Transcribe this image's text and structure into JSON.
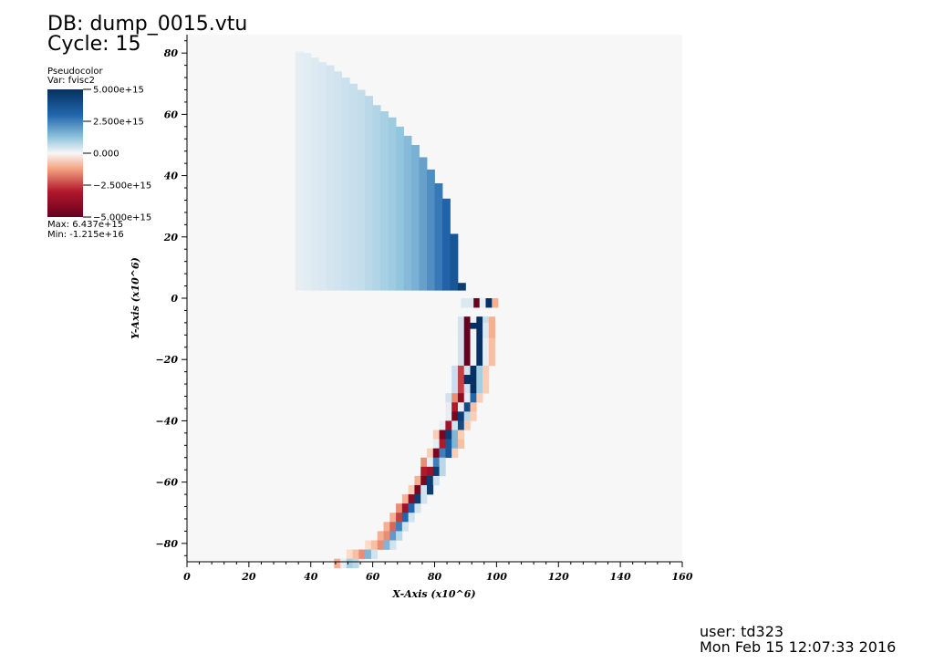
{
  "header": {
    "db_line": "DB: dump_0015.vtu",
    "cycle_line": "Cycle: 15"
  },
  "legend": {
    "plot_type": "Pseudocolor",
    "var_line": "Var: fvisc2",
    "max_line": "Max:  6.437e+15",
    "min_line": "Min: -1.215e+16",
    "colors": {
      "high": "#053061",
      "mid_high": "#2166ac",
      "light_blue": "#d1e5f0",
      "mid": "#f7f7f7",
      "light_red": "#fddbc7",
      "mid_low": "#d6604d",
      "low": "#67001f"
    }
  },
  "footer": {
    "user_line": "user: td323",
    "date_line": "Mon Feb 15 12:07:33 2016"
  },
  "chart_data": {
    "type": "heatmap",
    "title": "",
    "xlabel": "X-Axis (x10^6)",
    "ylabel": "Y-Axis (x10^6)",
    "xlim": [
      0,
      160
    ],
    "ylim": [
      -86,
      86
    ],
    "x_ticks": [
      0,
      20,
      40,
      60,
      80,
      100,
      120,
      140,
      160
    ],
    "x_tick_labels": [
      "0",
      "20",
      "40",
      "60",
      "80",
      "100",
      "120",
      "140",
      "160"
    ],
    "y_ticks": [
      80,
      60,
      40,
      20,
      0,
      -20,
      -40,
      -60,
      -80
    ],
    "y_tick_labels": [
      "80",
      "60",
      "40",
      "20",
      "0",
      "−20",
      "−40",
      "−60",
      "−80"
    ],
    "colorbar": {
      "ticks": [
        5000000000000000.0,
        2500000000000000.0,
        0,
        -2500000000000000.0,
        -5000000000000000.0
      ],
      "tick_labels": [
        "5.000e+15",
        "2.500e+15",
        "0.000",
        "−2.500e+15",
        "−5.000e+15"
      ],
      "range": [
        -5000000000000000.0,
        5000000000000000.0
      ]
    },
    "background_value": 0,
    "upper_region": {
      "cell_width": 2.5,
      "y_bottom": 2.5,
      "columns": [
        {
          "x": 35.0,
          "top": 80.5,
          "v": 0.05
        },
        {
          "x": 37.5,
          "top": 80.0,
          "v": 0.06
        },
        {
          "x": 40.0,
          "top": 78.5,
          "v": 0.07
        },
        {
          "x": 42.5,
          "top": 77.0,
          "v": 0.08
        },
        {
          "x": 45.0,
          "top": 76.0,
          "v": 0.09
        },
        {
          "x": 47.5,
          "top": 74.0,
          "v": 0.1
        },
        {
          "x": 50.0,
          "top": 72.0,
          "v": 0.11
        },
        {
          "x": 52.5,
          "top": 70.0,
          "v": 0.12
        },
        {
          "x": 55.0,
          "top": 68.0,
          "v": 0.13
        },
        {
          "x": 57.5,
          "top": 66.0,
          "v": 0.15
        },
        {
          "x": 60.0,
          "top": 63.0,
          "v": 0.17
        },
        {
          "x": 62.5,
          "top": 61.0,
          "v": 0.19
        },
        {
          "x": 65.0,
          "top": 59.0,
          "v": 0.21
        },
        {
          "x": 67.5,
          "top": 56.0,
          "v": 0.24
        },
        {
          "x": 70.0,
          "top": 53.0,
          "v": 0.28
        },
        {
          "x": 72.5,
          "top": 50.0,
          "v": 0.32
        },
        {
          "x": 75.0,
          "top": 46.0,
          "v": 0.38
        },
        {
          "x": 77.5,
          "top": 42.0,
          "v": 0.45
        },
        {
          "x": 80.0,
          "top": 37.5,
          "v": 0.53
        },
        {
          "x": 82.5,
          "top": 32.5,
          "v": 0.62
        },
        {
          "x": 85.0,
          "top": 21.0,
          "v": 0.72
        },
        {
          "x": 87.5,
          "top": 5.0,
          "v": 0.9
        }
      ]
    },
    "lower_cells": [
      [
        90.5,
        0,
        1,
        0.1
      ],
      [
        92.5,
        0,
        1,
        -1
      ],
      [
        94.5,
        0,
        1,
        0.05
      ],
      [
        96.5,
        0,
        1,
        1
      ],
      [
        98.5,
        0,
        1,
        -0.2
      ],
      [
        88.5,
        0,
        2,
        0.08
      ],
      [
        87.5,
        -6,
        1,
        0.1
      ],
      [
        89.5,
        -6,
        1,
        -1
      ],
      [
        91.5,
        -6,
        1,
        0.02
      ],
      [
        93.5,
        -6,
        1,
        1
      ],
      [
        95.5,
        -6,
        1,
        0.12
      ],
      [
        97.5,
        -6,
        1,
        -0.2
      ],
      [
        87.5,
        -8,
        1,
        0.1
      ],
      [
        89.5,
        -8,
        1,
        -1
      ],
      [
        91.5,
        -8,
        1,
        1
      ],
      [
        93.5,
        -8,
        1,
        1
      ],
      [
        95.5,
        -8,
        1,
        0.08
      ],
      [
        97.5,
        -8,
        1,
        -0.2
      ],
      [
        87.5,
        -10,
        1,
        0.1
      ],
      [
        89.5,
        -10,
        1,
        -1
      ],
      [
        91.5,
        -10,
        1,
        0.02
      ],
      [
        93.5,
        -10,
        1,
        1
      ],
      [
        95.5,
        -10,
        1,
        0.08
      ],
      [
        97.5,
        -10,
        1,
        -0.2
      ],
      [
        87.5,
        -13,
        1,
        0.1
      ],
      [
        89.5,
        -13,
        1,
        -1
      ],
      [
        91.5,
        -13,
        1,
        0.02
      ],
      [
        93.5,
        -13,
        1,
        1
      ],
      [
        95.5,
        -13,
        1,
        0.05
      ],
      [
        97.5,
        -13,
        1,
        -0.15
      ],
      [
        87.5,
        -16,
        1,
        0.1
      ],
      [
        89.5,
        -16,
        1,
        -1
      ],
      [
        91.5,
        -16,
        1,
        0.02
      ],
      [
        93.5,
        -16,
        1,
        1
      ],
      [
        95.5,
        -16,
        1,
        0.05
      ],
      [
        97.5,
        -16,
        1,
        -0.15
      ],
      [
        87.5,
        -19,
        1,
        0.1
      ],
      [
        89.5,
        -19,
        1,
        -1
      ],
      [
        91.5,
        -19,
        1,
        0.02
      ],
      [
        93.5,
        -19,
        1,
        1
      ],
      [
        95.5,
        -19,
        1,
        0.05
      ],
      [
        97.5,
        -19,
        1,
        -0.15
      ],
      [
        85.5,
        -22,
        1,
        0.12
      ],
      [
        87.5,
        -22,
        1,
        -0.5
      ],
      [
        89.5,
        -22,
        1,
        0.1
      ],
      [
        91.5,
        -22,
        1,
        1
      ],
      [
        93.5,
        -22,
        1,
        0.2
      ],
      [
        95.5,
        -22,
        1,
        -0.1
      ],
      [
        85.5,
        -25,
        1,
        0.12
      ],
      [
        87.5,
        -25,
        1,
        -0.5
      ],
      [
        89.5,
        -25,
        1,
        1
      ],
      [
        91.5,
        -25,
        1,
        1
      ],
      [
        93.5,
        -25,
        1,
        0.2
      ],
      [
        95.5,
        -25,
        1,
        -0.1
      ],
      [
        85.5,
        -28,
        1,
        0.12
      ],
      [
        87.5,
        -28,
        1,
        -0.5
      ],
      [
        89.5,
        -28,
        1,
        0.1
      ],
      [
        91.5,
        -28,
        1,
        1
      ],
      [
        93.5,
        -28,
        1,
        0.2
      ],
      [
        95.5,
        -28,
        1,
        -0.1
      ],
      [
        83.5,
        -31,
        1,
        0.1
      ],
      [
        85.5,
        -31,
        1,
        -0.3
      ],
      [
        87.5,
        -31,
        1,
        -0.8
      ],
      [
        89.5,
        -31,
        1,
        0.05
      ],
      [
        91.5,
        -31,
        1,
        0.6
      ],
      [
        93.5,
        -31,
        1,
        -0.1
      ],
      [
        83.5,
        -34,
        1,
        0.05
      ],
      [
        85.5,
        -34,
        1,
        -0.6
      ],
      [
        87.5,
        -34,
        1,
        0.05
      ],
      [
        89.5,
        -34,
        1,
        0.8
      ],
      [
        91.5,
        -34,
        1,
        -0.15
      ],
      [
        83.5,
        -37,
        1,
        0.05
      ],
      [
        85.5,
        -37,
        1,
        -0.9
      ],
      [
        87.5,
        -37,
        1,
        0.9
      ],
      [
        89.5,
        -37,
        1,
        0.15
      ],
      [
        91.5,
        -37,
        1,
        -0.1
      ],
      [
        81.5,
        -40,
        1,
        0.05
      ],
      [
        83.5,
        -40,
        1,
        -0.7
      ],
      [
        85.5,
        -40,
        1,
        0.1
      ],
      [
        87.5,
        -40,
        1,
        0.8
      ],
      [
        89.5,
        -40,
        1,
        -0.1
      ],
      [
        79.5,
        -43,
        1,
        -0.1
      ],
      [
        81.5,
        -43,
        1,
        -0.9
      ],
      [
        83.5,
        -43,
        1,
        0.9
      ],
      [
        85.5,
        -43,
        1,
        0.3
      ],
      [
        87.5,
        -43,
        1,
        -0.1
      ],
      [
        79.5,
        -46,
        1,
        0.05
      ],
      [
        81.5,
        -46,
        1,
        -0.6
      ],
      [
        83.5,
        -46,
        1,
        0.7
      ],
      [
        85.5,
        -46,
        1,
        0.3
      ],
      [
        87.5,
        -46,
        1,
        -0.15
      ],
      [
        77.5,
        -49,
        1,
        -0.1
      ],
      [
        79.5,
        -49,
        1,
        -0.9
      ],
      [
        81.5,
        -49,
        1,
        0.5
      ],
      [
        83.5,
        -49,
        1,
        0.7
      ],
      [
        85.5,
        -49,
        1,
        -0.1
      ],
      [
        75.5,
        -52,
        1,
        -0.3
      ],
      [
        77.5,
        -52,
        1,
        0.05
      ],
      [
        79.5,
        -52,
        1,
        0.5
      ],
      [
        81.5,
        -52,
        1,
        0.15
      ],
      [
        75.5,
        -55,
        1,
        -0.6
      ],
      [
        77.5,
        -55,
        1,
        -0.7
      ],
      [
        79.5,
        -55,
        1,
        0.9
      ],
      [
        81.5,
        -55,
        1,
        0.15
      ],
      [
        73.5,
        -58,
        1,
        -0.2
      ],
      [
        75.5,
        -58,
        1,
        -0.9
      ],
      [
        77.5,
        -58,
        1,
        0.9
      ],
      [
        79.5,
        -58,
        1,
        0.1
      ],
      [
        71.5,
        -61,
        1,
        -0.1
      ],
      [
        73.5,
        -61,
        1,
        -0.9
      ],
      [
        75.5,
        -61,
        1,
        0.1
      ],
      [
        77.5,
        -61,
        1,
        0.9
      ],
      [
        69.5,
        -64,
        1,
        -0.2
      ],
      [
        71.5,
        -64,
        1,
        -0.8
      ],
      [
        73.5,
        -64,
        1,
        0.9
      ],
      [
        75.5,
        -64,
        1,
        0.1
      ],
      [
        67.5,
        -67,
        1,
        -0.3
      ],
      [
        69.5,
        -67,
        1,
        -0.7
      ],
      [
        71.5,
        -67,
        1,
        0.6
      ],
      [
        73.5,
        -67,
        1,
        0.1
      ],
      [
        65.5,
        -70,
        1,
        -0.2
      ],
      [
        67.5,
        -70,
        1,
        -0.5
      ],
      [
        69.5,
        -70,
        1,
        0.6
      ],
      [
        71.5,
        -70,
        1,
        0.1
      ],
      [
        63.5,
        -73,
        1,
        -0.2
      ],
      [
        65.5,
        -73,
        1,
        -0.4
      ],
      [
        67.5,
        -73,
        1,
        0.5
      ],
      [
        69.5,
        -73,
        1,
        0.1
      ],
      [
        61.5,
        -76,
        1,
        -0.2
      ],
      [
        63.5,
        -76,
        1,
        -0.3
      ],
      [
        65.5,
        -76,
        1,
        0.4
      ],
      [
        67.5,
        -76,
        1,
        0.15
      ],
      [
        57.5,
        -79,
        1,
        -0.05
      ],
      [
        59.5,
        -79,
        1,
        -0.15
      ],
      [
        61.5,
        -79,
        1,
        -0.3
      ],
      [
        63.5,
        -79,
        1,
        0.3
      ],
      [
        65.5,
        -79,
        1,
        0.1
      ],
      [
        51.5,
        -82,
        1,
        -0.05
      ],
      [
        53.5,
        -82,
        1,
        -0.15
      ],
      [
        55.5,
        -82,
        1,
        -0.3
      ],
      [
        57.5,
        -82,
        1,
        0.3
      ],
      [
        59.5,
        -82,
        1,
        0.1
      ],
      [
        47.5,
        -85,
        1,
        -0.2
      ],
      [
        49.5,
        -85,
        1,
        0.05
      ],
      [
        51.5,
        -85,
        1,
        0.2
      ],
      [
        53.5,
        -85,
        1,
        0.15
      ]
    ]
  }
}
